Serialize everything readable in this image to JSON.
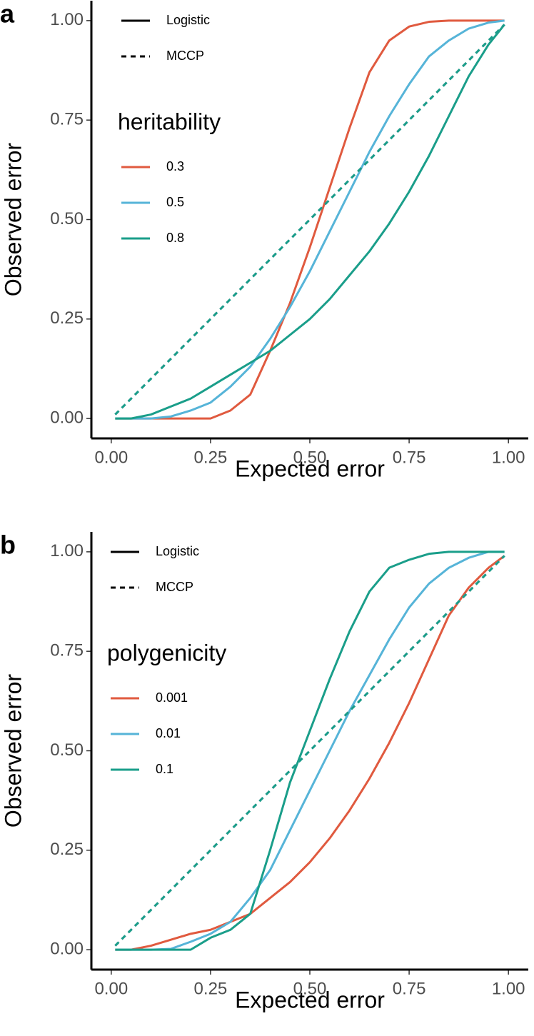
{
  "chart_data": [
    {
      "type": "line",
      "panel_label": "a",
      "xlabel": "Expected error",
      "ylabel": "Observed error",
      "xlim": [
        -0.05,
        1.05
      ],
      "ylim": [
        -0.05,
        1.05
      ],
      "xticks": [
        {
          "value": 0,
          "label": "0.00"
        },
        {
          "value": 0.25,
          "label": "0.25"
        },
        {
          "value": 0.5,
          "label": "0.50"
        },
        {
          "value": 0.75,
          "label": "0.75"
        },
        {
          "value": 1,
          "label": "1.00"
        }
      ],
      "yticks": [
        {
          "value": 0,
          "label": "0.00"
        },
        {
          "value": 0.25,
          "label": "0.25"
        },
        {
          "value": 0.5,
          "label": "0.50"
        },
        {
          "value": 0.75,
          "label": "0.75"
        },
        {
          "value": 1,
          "label": "1.00"
        }
      ],
      "linetype_labels": [
        "Logistic",
        "MCCP"
      ],
      "legend_title": "heritability",
      "x": [
        0.01,
        0.05,
        0.1,
        0.15,
        0.2,
        0.25,
        0.3,
        0.35,
        0.4,
        0.45,
        0.5,
        0.55,
        0.6,
        0.65,
        0.7,
        0.75,
        0.8,
        0.85,
        0.9,
        0.95,
        0.99
      ],
      "series": [
        {
          "name": "0.3",
          "color": "#e05a3f",
          "values": [
            0,
            0,
            0,
            0,
            0,
            0,
            0.02,
            0.06,
            0.17,
            0.29,
            0.43,
            0.58,
            0.73,
            0.87,
            0.95,
            0.985,
            0.997,
            1,
            1,
            1,
            1
          ],
          "mccp_values": [
            0.01,
            0.05,
            0.1,
            0.15,
            0.2,
            0.25,
            0.3,
            0.35,
            0.4,
            0.45,
            0.5,
            0.55,
            0.6,
            0.65,
            0.7,
            0.75,
            0.8,
            0.85,
            0.9,
            0.95,
            0.99
          ]
        },
        {
          "name": "0.5",
          "color": "#56b4d8",
          "values": [
            0,
            0,
            0,
            0.005,
            0.02,
            0.04,
            0.08,
            0.13,
            0.2,
            0.28,
            0.37,
            0.47,
            0.57,
            0.67,
            0.76,
            0.84,
            0.91,
            0.95,
            0.98,
            0.995,
            1
          ],
          "mccp_values": [
            0.01,
            0.05,
            0.1,
            0.15,
            0.2,
            0.25,
            0.3,
            0.35,
            0.4,
            0.45,
            0.5,
            0.55,
            0.6,
            0.65,
            0.7,
            0.75,
            0.8,
            0.85,
            0.9,
            0.95,
            0.99
          ]
        },
        {
          "name": "0.8",
          "color": "#1a9e8a",
          "values": [
            0,
            0,
            0.01,
            0.03,
            0.05,
            0.08,
            0.11,
            0.14,
            0.17,
            0.21,
            0.25,
            0.3,
            0.36,
            0.42,
            0.49,
            0.57,
            0.66,
            0.76,
            0.86,
            0.94,
            0.99
          ],
          "mccp_values": [
            0.01,
            0.05,
            0.1,
            0.15,
            0.2,
            0.25,
            0.3,
            0.35,
            0.4,
            0.45,
            0.5,
            0.55,
            0.6,
            0.65,
            0.7,
            0.75,
            0.8,
            0.85,
            0.9,
            0.95,
            0.99
          ]
        }
      ]
    },
    {
      "type": "line",
      "panel_label": "b",
      "xlabel": "Expected error",
      "ylabel": "Observed error",
      "xlim": [
        -0.05,
        1.05
      ],
      "ylim": [
        -0.05,
        1.05
      ],
      "xticks": [
        {
          "value": 0,
          "label": "0.00"
        },
        {
          "value": 0.25,
          "label": "0.25"
        },
        {
          "value": 0.5,
          "label": "0.50"
        },
        {
          "value": 0.75,
          "label": "0.75"
        },
        {
          "value": 1,
          "label": "1.00"
        }
      ],
      "yticks": [
        {
          "value": 0,
          "label": "0.00"
        },
        {
          "value": 0.25,
          "label": "0.25"
        },
        {
          "value": 0.5,
          "label": "0.50"
        },
        {
          "value": 0.75,
          "label": "0.75"
        },
        {
          "value": 1,
          "label": "1.00"
        }
      ],
      "linetype_labels": [
        "Logistic",
        "MCCP"
      ],
      "legend_title": "polygenicity",
      "x": [
        0.01,
        0.05,
        0.1,
        0.15,
        0.2,
        0.25,
        0.3,
        0.35,
        0.4,
        0.45,
        0.5,
        0.55,
        0.6,
        0.65,
        0.7,
        0.75,
        0.8,
        0.85,
        0.9,
        0.95,
        0.99
      ],
      "series": [
        {
          "name": "0.001",
          "color": "#e05a3f",
          "values": [
            0,
            0,
            0.01,
            0.025,
            0.04,
            0.05,
            0.07,
            0.09,
            0.13,
            0.17,
            0.22,
            0.28,
            0.35,
            0.43,
            0.52,
            0.62,
            0.73,
            0.84,
            0.91,
            0.96,
            0.99
          ],
          "mccp_values": [
            0.01,
            0.05,
            0.1,
            0.15,
            0.2,
            0.25,
            0.3,
            0.35,
            0.4,
            0.45,
            0.5,
            0.55,
            0.6,
            0.65,
            0.7,
            0.75,
            0.8,
            0.85,
            0.9,
            0.95,
            0.99
          ]
        },
        {
          "name": "0.01",
          "color": "#56b4d8",
          "values": [
            0,
            0,
            0,
            0.002,
            0.02,
            0.04,
            0.07,
            0.13,
            0.2,
            0.3,
            0.4,
            0.5,
            0.6,
            0.69,
            0.78,
            0.86,
            0.92,
            0.96,
            0.985,
            1,
            1
          ],
          "mccp_values": [
            0.01,
            0.05,
            0.1,
            0.15,
            0.2,
            0.25,
            0.3,
            0.35,
            0.4,
            0.45,
            0.5,
            0.55,
            0.6,
            0.65,
            0.7,
            0.75,
            0.8,
            0.85,
            0.9,
            0.95,
            0.99
          ]
        },
        {
          "name": "0.1",
          "color": "#1a9e8a",
          "values": [
            0,
            0,
            0,
            0,
            0,
            0.03,
            0.05,
            0.09,
            0.25,
            0.42,
            0.55,
            0.68,
            0.8,
            0.9,
            0.96,
            0.98,
            0.995,
            1,
            1,
            1,
            1
          ],
          "mccp_values": [
            0.01,
            0.05,
            0.1,
            0.15,
            0.2,
            0.25,
            0.3,
            0.35,
            0.4,
            0.45,
            0.5,
            0.55,
            0.6,
            0.65,
            0.7,
            0.75,
            0.8,
            0.85,
            0.9,
            0.95,
            0.99
          ]
        }
      ]
    }
  ]
}
